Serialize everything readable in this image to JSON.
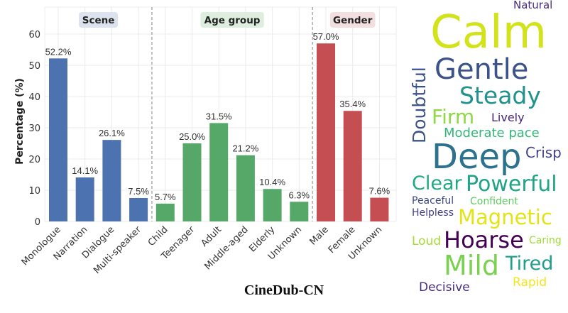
{
  "chart_data": {
    "type": "bar",
    "ylabel": "Percentage (%)",
    "ylim": [
      0,
      68
    ],
    "yticks": [
      0,
      10,
      20,
      30,
      40,
      50,
      60
    ],
    "grid": true,
    "groups": [
      {
        "name": "Scene",
        "color": "#4c72b0",
        "label_bg": "#dde3ee",
        "categories": [
          "Monologue",
          "Narration",
          "Dialogue",
          "Multi-speaker"
        ],
        "values": [
          52.2,
          14.1,
          26.1,
          7.5
        ],
        "labels": [
          "52.2%",
          "14.1%",
          "26.1%",
          "7.5%"
        ]
      },
      {
        "name": "Age group",
        "color": "#55a868",
        "label_bg": "#ddeedf",
        "categories": [
          "Child",
          "Teenager",
          "Adult",
          "Middle-aged",
          "Elderly",
          "Unknown"
        ],
        "values": [
          5.7,
          25.0,
          31.5,
          21.2,
          10.4,
          6.3
        ],
        "labels": [
          "5.7%",
          "25.0%",
          "31.5%",
          "21.2%",
          "10.4%",
          "6.3%"
        ]
      },
      {
        "name": "Gender",
        "color": "#c44e52",
        "label_bg": "#f3dfe0",
        "categories": [
          "Male",
          "Female",
          "Unknown"
        ],
        "values": [
          57.0,
          35.4,
          7.6
        ],
        "labels": [
          "57.0%",
          "35.4%",
          "7.6%"
        ]
      }
    ]
  },
  "wordcloud": {
    "words": [
      {
        "text": "Calm",
        "color": "#d2e21b"
      },
      {
        "text": "Natural",
        "color": "#472d7b"
      },
      {
        "text": "Doubtful",
        "color": "#3b528b"
      },
      {
        "text": "Gentle",
        "color": "#3b528b"
      },
      {
        "text": "Steady",
        "color": "#21918c"
      },
      {
        "text": "Firm",
        "color": "#8fd744"
      },
      {
        "text": "Moderate pace",
        "color": "#35b779"
      },
      {
        "text": "Deep",
        "color": "#2c728e"
      },
      {
        "text": "Lively",
        "color": "#482475"
      },
      {
        "text": "Clear",
        "color": "#22a884"
      },
      {
        "text": "Crisp",
        "color": "#414487"
      },
      {
        "text": "Powerful",
        "color": "#20a486"
      },
      {
        "text": "Peaceful",
        "color": "#3e4a89"
      },
      {
        "text": "Confident",
        "color": "#5ec962"
      },
      {
        "text": "Magnetic",
        "color": "#e2e418"
      },
      {
        "text": "Helpless",
        "color": "#433e85"
      },
      {
        "text": "Hoarse",
        "color": "#440154"
      },
      {
        "text": "Caring",
        "color": "#a0da39"
      },
      {
        "text": "Loud",
        "color": "#a5db36"
      },
      {
        "text": "Mild",
        "color": "#7ad151"
      },
      {
        "text": "Tired",
        "color": "#1f9e89"
      },
      {
        "text": "Decisive",
        "color": "#472c7a"
      },
      {
        "text": "Rapid",
        "color": "#f4e51e"
      }
    ]
  },
  "caption": "CineDub-CN"
}
